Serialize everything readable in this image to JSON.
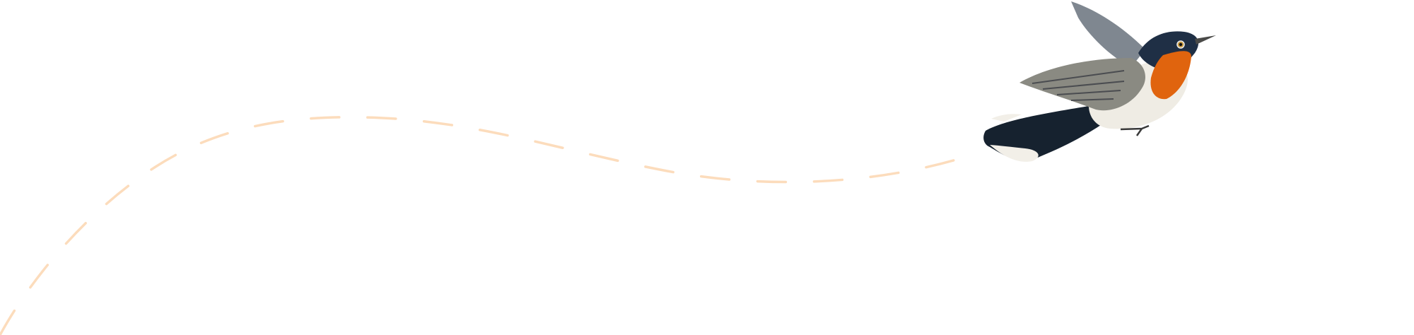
{
  "illustration": {
    "subject": "bird-in-flight",
    "flight_path_style": "dashed",
    "colors": {
      "background": "#ffffff",
      "flight_path": "#fcdcbc",
      "throat": "#e0640e",
      "head": "#1f2f45",
      "wing": "#8a8a82",
      "belly": "#efece4",
      "tail": "#16222f"
    }
  }
}
